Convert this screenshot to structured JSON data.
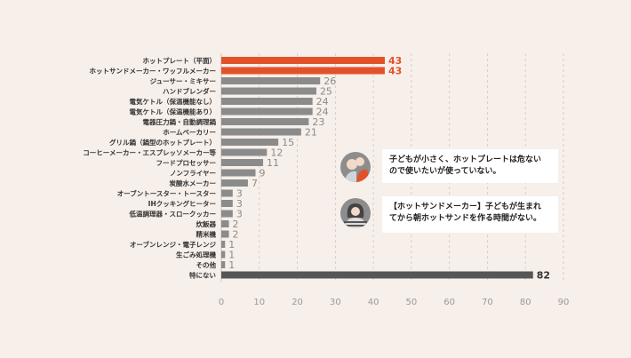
{
  "chart_data": {
    "type": "bar",
    "orientation": "horizontal",
    "categories": [
      "ホットプレート（平面）",
      "ホットサンドメーカー・ワッフルメーカー",
      "ジューサー・ミキサー",
      "ハンドブレンダー",
      "電気ケトル（保温機能なし）",
      "電気ケトル（保温機能あり）",
      "電器圧力鍋・自動調理鍋",
      "ホームベーカリー",
      "グリル鍋（鍋型のホットプレート）",
      "コーヒーメーカー・エスプレッソメーカー等",
      "フードプロセッサー",
      "ノンフライヤー",
      "炭酸水メーカー",
      "オーブントースター・トースター",
      "IHクッキングヒーター",
      "低温調理器・スロークッカー",
      "炊飯器",
      "精米機",
      "オーブンレンジ・電子レンジ",
      "生ごみ処理機",
      "その他",
      "特にない"
    ],
    "values": [
      43,
      43,
      26,
      25,
      24,
      24,
      23,
      21,
      15,
      12,
      11,
      9,
      7,
      3,
      3,
      3,
      2,
      2,
      1,
      1,
      1,
      82
    ],
    "xlim": [
      0,
      90
    ],
    "xticks": [
      0,
      10,
      20,
      30,
      40,
      50,
      60,
      70,
      80,
      90
    ],
    "grid": true,
    "colors": {
      "highlight": "#e2522a",
      "normal": "#8b8b8b",
      "none": "#565656"
    },
    "highlight_indices": [
      0,
      1
    ],
    "none_index": 21
  },
  "comments": [
    {
      "text_line1": "子どもが小さく、ホットプレートは危ない",
      "text_line2": "ので使いたいが使っていない。"
    },
    {
      "text_line1": "【ホットサンドメーカー】子どもが生まれ",
      "text_line2": "てから朝ホットサンドを作る時間がない。"
    }
  ]
}
